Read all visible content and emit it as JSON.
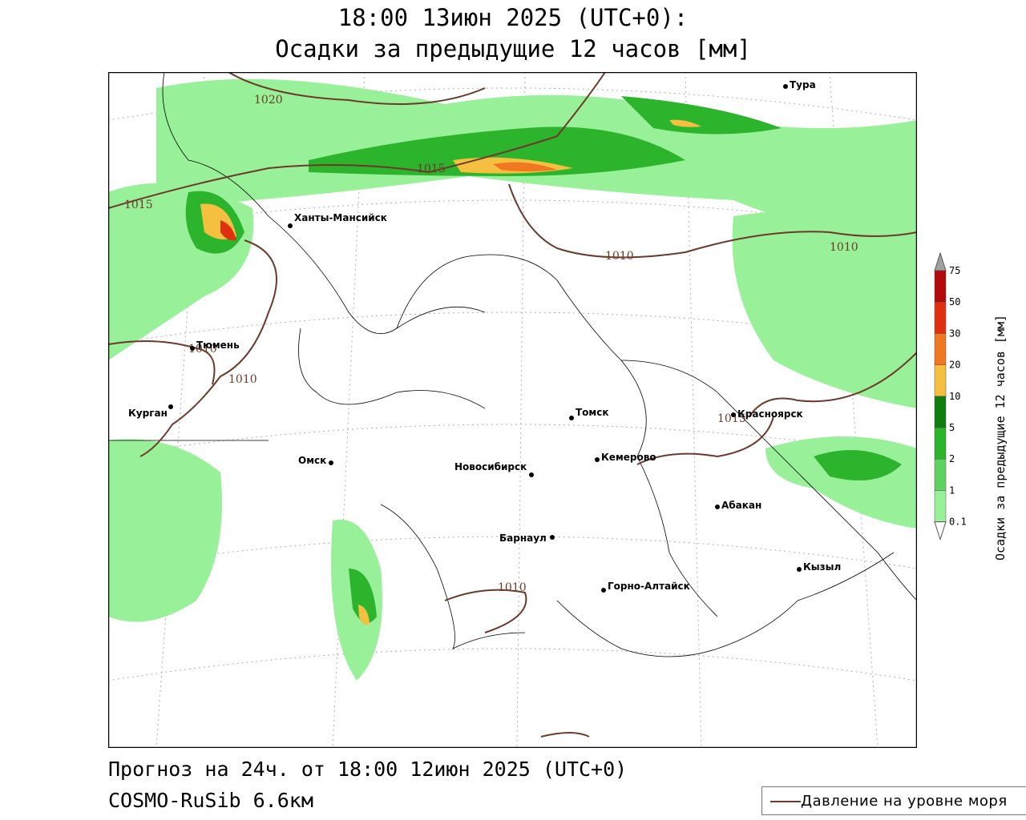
{
  "header": {
    "line1": "18:00 13июн 2025 (UTC+0):",
    "line2": "Осадки за предыдущие 12 часов [мм]"
  },
  "footer": {
    "line1": "Прогноз на 24ч. от 18:00 12июн 2025 (UTC+0)",
    "line2": "COSMO-RuSib 6.6км"
  },
  "legend": {
    "pressure_label": "Давление на уровне моря",
    "pressure_color": "#6b3a2a"
  },
  "colorbar": {
    "title": "Осадки за предыдущие 12 часов [мм]",
    "levels": [
      "0.1",
      "1",
      "2",
      "5",
      "10",
      "20",
      "30",
      "50",
      "75"
    ],
    "colors": [
      "#98f098",
      "#5fd35f",
      "#2db42d",
      "#0f7d0f",
      "#f5c040",
      "#f07820",
      "#e03010",
      "#b00a0a",
      "#a0a0a0"
    ]
  },
  "cities": [
    {
      "name": "Тура"
    },
    {
      "name": "Ханты-Мансийск"
    },
    {
      "name": "Тюмень"
    },
    {
      "name": "Курган"
    },
    {
      "name": "Омск"
    },
    {
      "name": "Томск"
    },
    {
      "name": "Новосибирск"
    },
    {
      "name": "Кемерово"
    },
    {
      "name": "Красноярск"
    },
    {
      "name": "Абакан"
    },
    {
      "name": "Барнаул"
    },
    {
      "name": "Горно-Алтайск"
    },
    {
      "name": "Кызыл"
    }
  ],
  "isobars": [
    "1020",
    "1015",
    "1015",
    "1010",
    "1010",
    "1010",
    "1010",
    "1015",
    "1010"
  ]
}
